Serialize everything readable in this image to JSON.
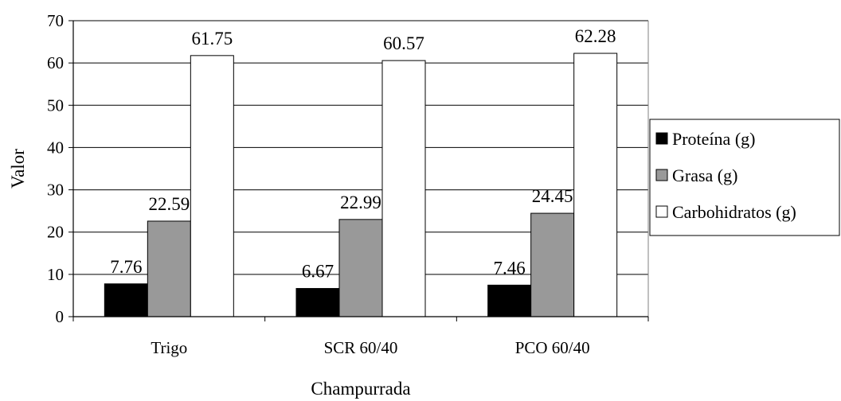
{
  "chart_data": {
    "type": "bar",
    "title": "",
    "xlabel": "Champurrada",
    "ylabel": "Valor",
    "ylim": [
      0,
      70
    ],
    "yticks": [
      0,
      10,
      20,
      30,
      40,
      50,
      60,
      70
    ],
    "grid": "horizontal",
    "legend_position": "right",
    "categories": [
      "Trigo",
      "SCR 60/40",
      "PCO 60/40"
    ],
    "series": [
      {
        "name": "Proteína (g)",
        "color": "#000000",
        "values": [
          7.76,
          6.67,
          7.46
        ]
      },
      {
        "name": "Grasa (g)",
        "color": "#999999",
        "values": [
          22.59,
          22.99,
          24.45
        ]
      },
      {
        "name": "Carbohidratos (g)",
        "color": "#ffffff",
        "values": [
          61.75,
          60.57,
          62.28
        ]
      }
    ]
  }
}
